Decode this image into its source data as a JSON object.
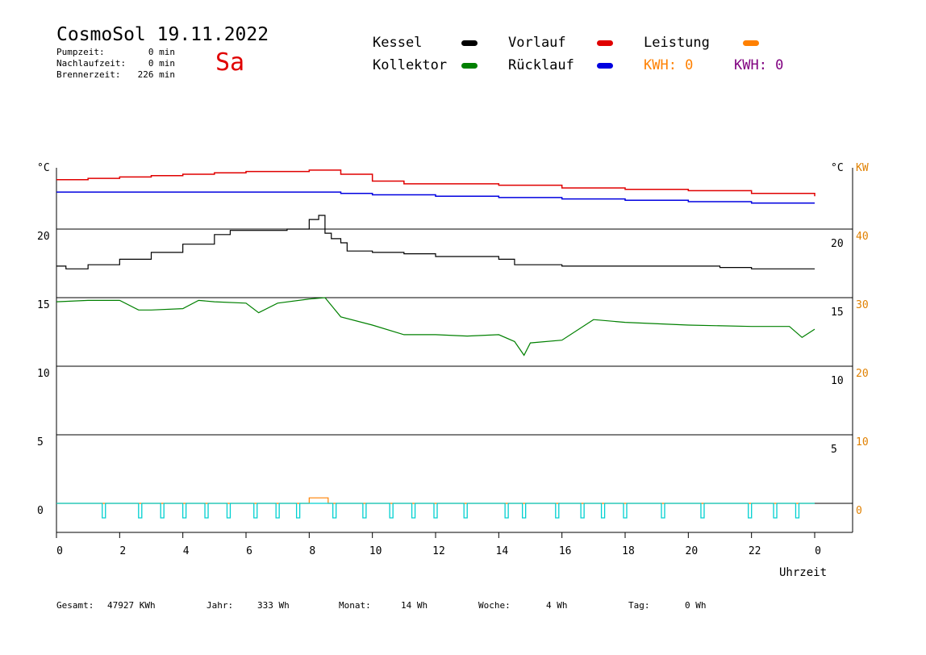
{
  "header": {
    "title": "CosmoSol 19.11.2022",
    "day": "Sa",
    "stats": [
      {
        "label": "Pumpzeit:",
        "value": "0 min"
      },
      {
        "label": "Nachlaufzeit:",
        "value": "0 min"
      },
      {
        "label": "Brennerzeit:",
        "value": "226 min"
      }
    ]
  },
  "legend": {
    "kessel": "Kessel",
    "kollektor": "Kollektor",
    "vorlauf": "Vorlauf",
    "ruecklauf": "Rücklauf",
    "leistung": "Leistung",
    "kwh1": "KWH: 0",
    "kwh2": "KWH: 0"
  },
  "colors": {
    "kessel": "#000000",
    "kollektor": "#008000",
    "vorlauf": "#e00000",
    "ruecklauf": "#0000e0",
    "leistung": "#ff8000",
    "pump": "#00d0d0",
    "kwh2": "#800080"
  },
  "footer": {
    "gesamt_label": "Gesamt:",
    "gesamt_value": "47927 KWh",
    "jahr_label": "Jahr:",
    "jahr_value": "333 Wh",
    "monat_label": "Monat:",
    "monat_value": "14 Wh",
    "woche_label": "Woche:",
    "woche_value": "4 Wh",
    "tag_label": "Tag:",
    "tag_value": "0 Wh"
  },
  "chart_data": {
    "type": "line",
    "xlabel": "Uhrzeit",
    "y_unit_left": "°C",
    "y_unit_right": "°C",
    "y2_unit": "KW",
    "x_ticks": [
      "0",
      "2",
      "4",
      "6",
      "8",
      "10",
      "12",
      "14",
      "16",
      "18",
      "20",
      "22",
      "0"
    ],
    "y_left_ticks": [
      "0",
      "5",
      "10",
      "15",
      "20"
    ],
    "y_right_ticks": [
      "5",
      "10",
      "15",
      "20"
    ],
    "y2_ticks": [
      "0",
      "10",
      "20",
      "30",
      "40"
    ],
    "ylim": [
      -2,
      25
    ],
    "xlim": [
      0,
      24
    ],
    "grid": "horizontal",
    "series": [
      {
        "name": "Vorlauf",
        "x": [
          0,
          1,
          2,
          3,
          4,
          5,
          6,
          7,
          8,
          8.5,
          9,
          10,
          11,
          12,
          14,
          16,
          18,
          20,
          22,
          24
        ],
        "values": [
          23.6,
          23.7,
          23.8,
          23.9,
          24.0,
          24.1,
          24.2,
          24.2,
          24.3,
          24.3,
          24.0,
          23.5,
          23.3,
          23.3,
          23.2,
          23.0,
          22.9,
          22.8,
          22.6,
          22.4
        ]
      },
      {
        "name": "Rücklauf",
        "x": [
          0,
          2,
          4,
          6,
          8,
          8.5,
          9,
          10,
          12,
          14,
          16,
          18,
          20,
          22,
          24
        ],
        "values": [
          22.7,
          22.7,
          22.7,
          22.7,
          22.7,
          22.7,
          22.6,
          22.5,
          22.4,
          22.3,
          22.2,
          22.1,
          22.0,
          21.9,
          21.9
        ]
      },
      {
        "name": "Kessel",
        "x": [
          0,
          0.3,
          1,
          2,
          3,
          4,
          5,
          5.5,
          7.3,
          8,
          8.3,
          8.5,
          8.7,
          9,
          9.2,
          10,
          11,
          12,
          14,
          14.5,
          16,
          18,
          20,
          21,
          22,
          24
        ],
        "values": [
          17.3,
          17.1,
          17.4,
          17.8,
          18.3,
          18.9,
          19.6,
          19.9,
          20.0,
          20.7,
          21.0,
          19.7,
          19.3,
          19.0,
          18.4,
          18.3,
          18.2,
          18.0,
          17.8,
          17.4,
          17.3,
          17.3,
          17.3,
          17.2,
          17.1,
          17.1
        ]
      },
      {
        "name": "Kollektor",
        "x": [
          0,
          1,
          2,
          2.6,
          3,
          4,
          4.5,
          5,
          6,
          6.4,
          7,
          8,
          8.5,
          9,
          10,
          11,
          12,
          13,
          14,
          14.5,
          14.8,
          15,
          16,
          17,
          18,
          20,
          22,
          23.2,
          23.6,
          24
        ],
        "values": [
          14.7,
          14.8,
          14.8,
          14.1,
          14.1,
          14.2,
          14.8,
          14.7,
          14.6,
          13.9,
          14.6,
          14.9,
          15.0,
          13.6,
          13.0,
          12.3,
          12.3,
          12.2,
          12.3,
          11.8,
          10.8,
          11.7,
          11.9,
          13.4,
          13.2,
          13.0,
          12.9,
          12.9,
          12.1,
          12.7
        ]
      },
      {
        "name": "Leistung",
        "x": [
          0,
          7.9,
          8.0,
          8.5,
          8.6,
          24
        ],
        "values": [
          0,
          0,
          0.4,
          0.4,
          0,
          0
        ]
      }
    ],
    "pump_pulses_hours": [
      1.5,
      2.65,
      3.35,
      4.05,
      4.75,
      5.45,
      6.3,
      7.0,
      7.65,
      8.8,
      9.75,
      10.6,
      11.3,
      12.0,
      12.95,
      14.25,
      14.8,
      15.85,
      16.65,
      17.3,
      18.0,
      19.2,
      20.45,
      21.95,
      22.75,
      23.45
    ]
  }
}
